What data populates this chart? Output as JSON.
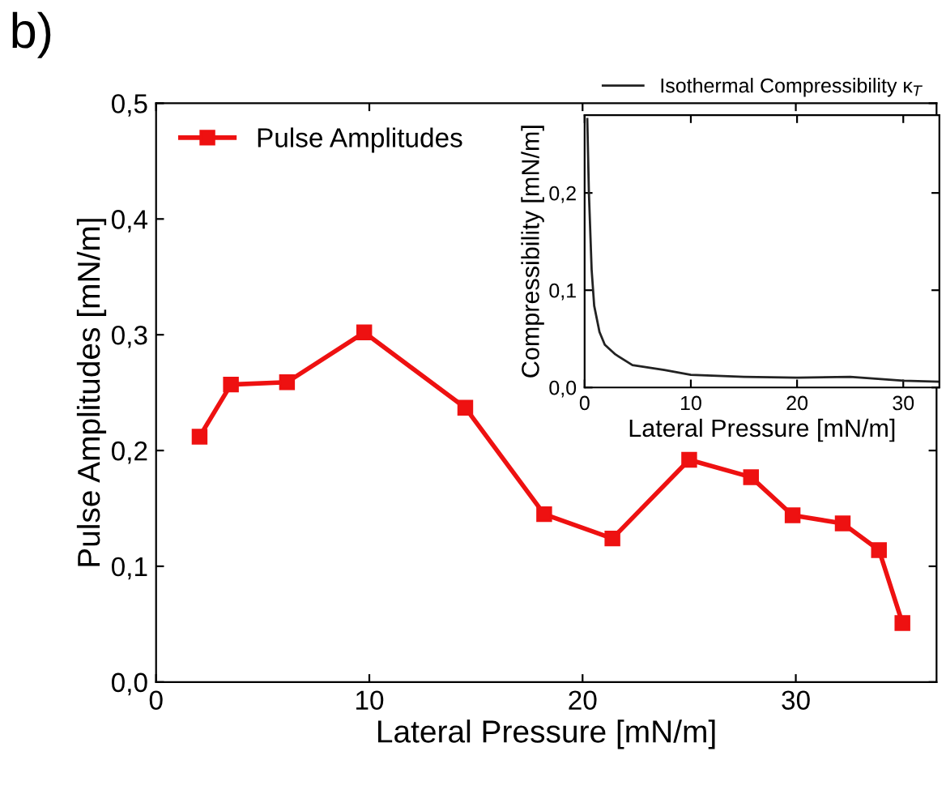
{
  "chart_data": [
    {
      "type": "line",
      "title": "b)",
      "xlabel": "Lateral Pressure [mN/m]",
      "ylabel": "Pulse Amplitudes [mN/m]",
      "series": [
        {
          "name": "Pulse Amplitudes",
          "color": "#ee1111",
          "x": [
            2.04,
            3.51,
            6.14,
            9.76,
            14.5,
            18.2,
            21.4,
            25.0,
            27.9,
            29.85,
            32.2,
            33.9,
            35.0
          ],
          "values": [
            0.212,
            0.257,
            0.259,
            0.302,
            0.237,
            0.145,
            0.124,
            0.192,
            0.177,
            0.144,
            0.137,
            0.114,
            0.051
          ]
        }
      ],
      "xlim": [
        0,
        36.6
      ],
      "xticks": [
        0,
        10,
        20,
        30
      ],
      "ylim": [
        0,
        0.5
      ],
      "yticks": [
        {
          "value": 0,
          "label": "0,0"
        },
        {
          "value": 0.1,
          "label": "0,1"
        },
        {
          "value": 0.2,
          "label": "0,2"
        },
        {
          "value": 0.3,
          "label": "0,3"
        },
        {
          "value": 0.4,
          "label": "0,4"
        },
        {
          "value": 0.5,
          "label": "0,5"
        }
      ],
      "marker": "square",
      "line_style": "solid",
      "legend": "top left"
    },
    {
      "type": "line",
      "xlabel": "Lateral Pressure [mN/m]",
      "ylabel": "Compressibility [mN/m]",
      "series": [
        {
          "name": "Isothermal Compressibility κ$_{T}$",
          "color": "#222222",
          "x": [
            0.25,
            0.4,
            0.66,
            0.9,
            1.4,
            1.9,
            2.9,
            4.5,
            7.5,
            10,
            15,
            20,
            25,
            30,
            33.3
          ],
          "values": [
            0.276,
            0.201,
            0.121,
            0.084,
            0.057,
            0.044,
            0.034,
            0.023,
            0.018,
            0.013,
            0.011,
            0.01,
            0.011,
            0.007,
            0.006
          ]
        }
      ],
      "xlim": [
        0,
        33.4
      ],
      "xticks": [
        0,
        10,
        20,
        30
      ],
      "ylim": [
        0,
        0.28
      ],
      "yticks": [
        {
          "value": 0,
          "label": "0,0"
        },
        {
          "value": 0.1,
          "label": "0,1"
        },
        {
          "value": 0.2,
          "label": "0,2"
        }
      ],
      "marker": "none",
      "line_style": "solid",
      "legend": "top"
    }
  ]
}
